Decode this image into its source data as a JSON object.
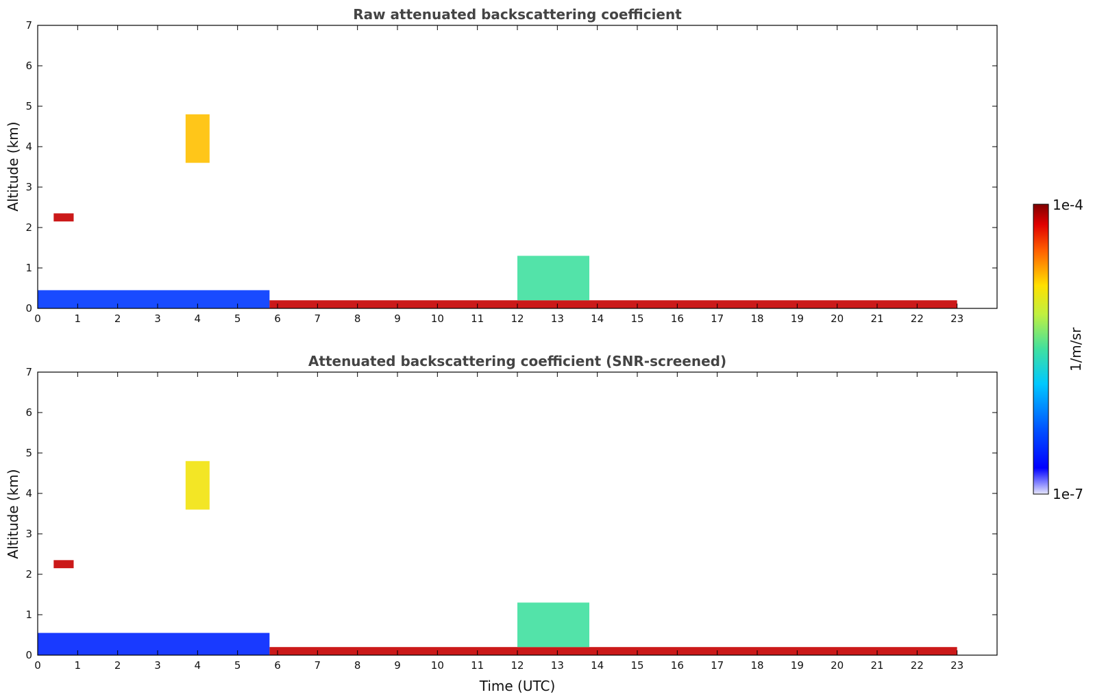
{
  "chart_data": [
    {
      "type": "heatmap",
      "title": "Raw attenuated backscattering coefficient",
      "xlabel": "",
      "ylabel": "Altitude (km)",
      "xlim": [
        0,
        24
      ],
      "ylim": [
        0,
        7
      ],
      "x_ticks": [
        "0",
        "1",
        "2",
        "3",
        "4",
        "5",
        "6",
        "7",
        "8",
        "9",
        "10",
        "11",
        "12",
        "13",
        "14",
        "15",
        "16",
        "17",
        "18",
        "19",
        "20",
        "21",
        "22",
        "23"
      ],
      "y_ticks": [
        "0",
        "1",
        "2",
        "3",
        "4",
        "5",
        "6",
        "7"
      ],
      "features": [
        {
          "t0": 0,
          "t1": 5.8,
          "z0": 0,
          "z1": 0.45,
          "level": 0.18
        },
        {
          "t0": 5.8,
          "t1": 23,
          "z0": 0,
          "z1": 0.2,
          "level": 0.95
        },
        {
          "t0": 12.0,
          "t1": 13.8,
          "z0": 0.2,
          "z1": 1.3,
          "level": 0.5
        },
        {
          "t0": 3.7,
          "t1": 4.3,
          "z0": 3.6,
          "z1": 4.8,
          "level": 0.75
        },
        {
          "t0": 0.4,
          "t1": 0.9,
          "z0": 2.15,
          "z1": 2.35,
          "level": 0.95
        }
      ]
    },
    {
      "type": "heatmap",
      "title": "Attenuated backscattering coefficient (SNR-screened)",
      "xlabel": "Time (UTC)",
      "ylabel": "Altitude (km)",
      "xlim": [
        0,
        24
      ],
      "ylim": [
        0,
        7
      ],
      "x_ticks": [
        "0",
        "1",
        "2",
        "3",
        "4",
        "5",
        "6",
        "7",
        "8",
        "9",
        "10",
        "11",
        "12",
        "13",
        "14",
        "15",
        "16",
        "17",
        "18",
        "19",
        "20",
        "21",
        "22",
        "23"
      ],
      "y_ticks": [
        "0",
        "1",
        "2",
        "3",
        "4",
        "5",
        "6",
        "7"
      ],
      "features": [
        {
          "t0": 0,
          "t1": 5.8,
          "z0": 0,
          "z1": 0.55,
          "level": 0.15
        },
        {
          "t0": 5.8,
          "t1": 23,
          "z0": 0,
          "z1": 0.2,
          "level": 0.95
        },
        {
          "t0": 12.0,
          "t1": 13.8,
          "z0": 0.2,
          "z1": 1.3,
          "level": 0.5
        },
        {
          "t0": 3.7,
          "t1": 4.3,
          "z0": 3.6,
          "z1": 4.8,
          "level": 0.7
        },
        {
          "t0": 0.4,
          "t1": 0.9,
          "z0": 2.15,
          "z1": 2.35,
          "level": 0.95
        }
      ]
    }
  ],
  "colorbar": {
    "max_label": "1e-4",
    "min_label": "1e-7",
    "unit_label": "1/m/sr",
    "scale": "log",
    "colormap": "jet"
  }
}
